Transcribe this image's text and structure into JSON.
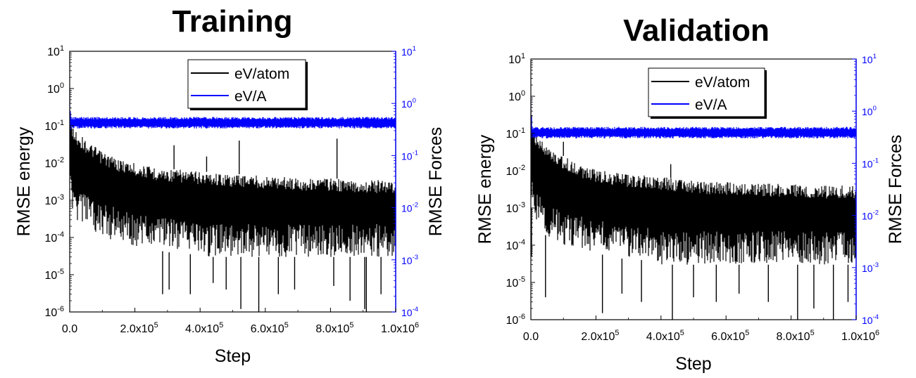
{
  "chart_data": [
    {
      "id": "training",
      "type": "line",
      "title": "Training",
      "xlabel": "Step",
      "ylabel": "RMSE energy",
      "ylabel_right": "RMSE Forces",
      "xlim": [
        0,
        1000000
      ],
      "ylim": [
        1e-06,
        10
      ],
      "ylim_right": [
        0.0001,
        10
      ],
      "yscale": "log",
      "yscale_right": "log",
      "x_tick_labels": [
        {
          "x": 0,
          "mant": "0.0",
          "exp": ""
        },
        {
          "x": 200000,
          "mant": "2.0x10",
          "exp": "5"
        },
        {
          "x": 400000,
          "mant": "4.0x10",
          "exp": "5"
        },
        {
          "x": 600000,
          "mant": "6.0x10",
          "exp": "5"
        },
        {
          "x": 800000,
          "mant": "8.0x10",
          "exp": "5"
        },
        {
          "x": 1000000,
          "mant": "1.0x10",
          "exp": "6"
        }
      ],
      "y_tick_labels": [
        {
          "y": 1e-06,
          "mant": "10",
          "exp": "-6"
        },
        {
          "y": 1e-05,
          "mant": "10",
          "exp": "-5"
        },
        {
          "y": 0.0001,
          "mant": "10",
          "exp": "-4"
        },
        {
          "y": 0.001,
          "mant": "10",
          "exp": "-3"
        },
        {
          "y": 0.01,
          "mant": "10",
          "exp": "-2"
        },
        {
          "y": 0.1,
          "mant": "10",
          "exp": "-1"
        },
        {
          "y": 1,
          "mant": "10",
          "exp": "0"
        },
        {
          "y": 10,
          "mant": "10",
          "exp": "1"
        }
      ],
      "y_right_tick_labels": [
        {
          "y": 0.0001,
          "mant": "10",
          "exp": "-4"
        },
        {
          "y": 0.001,
          "mant": "10",
          "exp": "-3"
        },
        {
          "y": 0.01,
          "mant": "10",
          "exp": "-2"
        },
        {
          "y": 0.1,
          "mant": "10",
          "exp": "-1"
        },
        {
          "y": 1,
          "mant": "10",
          "exp": "0"
        },
        {
          "y": 10,
          "mant": "10",
          "exp": "1"
        }
      ],
      "legend": "top-right",
      "series": [
        {
          "name": "eV/atom",
          "axis": "left",
          "color": "#000000",
          "x": [
            0,
            2000,
            5000,
            10000,
            20000,
            40000,
            60000,
            100000,
            150000,
            200000,
            250000,
            300000,
            350000,
            400000,
            450000,
            500000,
            550000,
            600000,
            650000,
            700000,
            750000,
            800000,
            850000,
            900000,
            950000,
            1000000
          ],
          "upper": [
            1.2,
            0.35,
            0.12,
            0.1,
            0.07,
            0.05,
            0.035,
            0.02,
            0.013,
            0.01,
            0.008,
            0.007,
            0.0065,
            0.006,
            0.0055,
            0.005,
            0.005,
            0.0045,
            0.0045,
            0.004,
            0.004,
            0.004,
            0.0035,
            0.0035,
            0.0035,
            0.0035
          ],
          "lower": [
            0.002,
            0.002,
            0.0008,
            0.0005,
            0.0003,
            0.0002,
            0.00015,
            0.0001,
            8e-05,
            6e-05,
            5e-05,
            4e-05,
            4e-05,
            3e-05,
            3e-05,
            3e-05,
            3e-05,
            3e-05,
            3e-05,
            3e-05,
            3e-05,
            3e-05,
            3e-05,
            3e-05,
            3e-05,
            3e-05
          ],
          "spikes": [
            {
              "x": 285000,
              "y": 3e-06
            },
            {
              "x": 305000,
              "y": 4e-06
            },
            {
              "x": 370000,
              "y": 3e-06
            },
            {
              "x": 440000,
              "y": 6e-06
            },
            {
              "x": 480000,
              "y": 4e-06
            },
            {
              "x": 525000,
              "y": 1.2e-06
            },
            {
              "x": 580000,
              "y": 1e-06
            },
            {
              "x": 640000,
              "y": 3e-06
            },
            {
              "x": 690000,
              "y": 4e-06
            },
            {
              "x": 810000,
              "y": 5e-06
            },
            {
              "x": 860000,
              "y": 2e-06
            },
            {
              "x": 905000,
              "y": 1.2e-06
            },
            {
              "x": 910000,
              "y": 1e-06
            },
            {
              "x": 955000,
              "y": 3e-06
            },
            {
              "x": 320000,
              "y": 0.03
            },
            {
              "x": 420000,
              "y": 0.015
            },
            {
              "x": 520000,
              "y": 0.04
            },
            {
              "x": 820000,
              "y": 0.045
            }
          ]
        },
        {
          "name": "eV/A",
          "axis": "right",
          "color": "#0000ff",
          "x": [
            0,
            2000,
            5000,
            1000000
          ],
          "upper": [
            2.0,
            0.8,
            0.55,
            0.55
          ],
          "lower": [
            0.3,
            0.3,
            0.33,
            0.33
          ]
        }
      ]
    },
    {
      "id": "validation",
      "type": "line",
      "title": "Validation",
      "xlabel": "Step",
      "ylabel": "RMSE energy",
      "ylabel_right": "RMSE Forces",
      "xlim": [
        0,
        1000000
      ],
      "ylim": [
        1e-06,
        10
      ],
      "ylim_right": [
        0.0001,
        10
      ],
      "yscale": "log",
      "yscale_right": "log",
      "x_tick_labels": [
        {
          "x": 0,
          "mant": "0.0",
          "exp": ""
        },
        {
          "x": 200000,
          "mant": "2.0x10",
          "exp": "5"
        },
        {
          "x": 400000,
          "mant": "4.0x10",
          "exp": "5"
        },
        {
          "x": 600000,
          "mant": "6.0x10",
          "exp": "5"
        },
        {
          "x": 800000,
          "mant": "8.0x10",
          "exp": "5"
        },
        {
          "x": 1000000,
          "mant": "1.0x10",
          "exp": "6"
        }
      ],
      "y_tick_labels": [
        {
          "y": 1e-06,
          "mant": "10",
          "exp": "-6"
        },
        {
          "y": 1e-05,
          "mant": "10",
          "exp": "-5"
        },
        {
          "y": 0.0001,
          "mant": "10",
          "exp": "-4"
        },
        {
          "y": 0.001,
          "mant": "10",
          "exp": "-3"
        },
        {
          "y": 0.01,
          "mant": "10",
          "exp": "-2"
        },
        {
          "y": 0.1,
          "mant": "10",
          "exp": "-1"
        },
        {
          "y": 1,
          "mant": "10",
          "exp": "0"
        },
        {
          "y": 10,
          "mant": "10",
          "exp": "1"
        }
      ],
      "y_right_tick_labels": [
        {
          "y": 0.0001,
          "mant": "10",
          "exp": "-4"
        },
        {
          "y": 0.001,
          "mant": "10",
          "exp": "-3"
        },
        {
          "y": 0.01,
          "mant": "10",
          "exp": "-2"
        },
        {
          "y": 0.1,
          "mant": "10",
          "exp": "-1"
        },
        {
          "y": 1,
          "mant": "10",
          "exp": "0"
        },
        {
          "y": 10,
          "mant": "10",
          "exp": "1"
        }
      ],
      "legend": "top-right",
      "series": [
        {
          "name": "eV/atom",
          "axis": "left",
          "color": "#000000",
          "x": [
            0,
            2000,
            5000,
            10000,
            20000,
            40000,
            60000,
            100000,
            150000,
            200000,
            250000,
            300000,
            350000,
            400000,
            450000,
            500000,
            550000,
            600000,
            650000,
            700000,
            750000,
            800000,
            850000,
            900000,
            950000,
            1000000
          ],
          "upper": [
            1.2,
            0.35,
            0.12,
            0.1,
            0.08,
            0.06,
            0.04,
            0.025,
            0.015,
            0.011,
            0.009,
            0.008,
            0.0075,
            0.007,
            0.006,
            0.0055,
            0.005,
            0.005,
            0.0048,
            0.0045,
            0.0045,
            0.0043,
            0.0042,
            0.004,
            0.004,
            0.004
          ],
          "lower": [
            0.003,
            0.001,
            0.0008,
            0.0005,
            0.0003,
            0.0002,
            0.00015,
            0.0001,
            8e-05,
            6e-05,
            5e-05,
            4e-05,
            4e-05,
            3e-05,
            3e-05,
            3e-05,
            3e-05,
            3e-05,
            3e-05,
            3e-05,
            3e-05,
            3e-05,
            3e-05,
            3e-05,
            3e-05,
            3e-05
          ],
          "spikes": [
            {
              "x": 2000,
              "y": 5e-05
            },
            {
              "x": 45000,
              "y": 4e-06
            },
            {
              "x": 220000,
              "y": 1.5e-06
            },
            {
              "x": 280000,
              "y": 5e-06
            },
            {
              "x": 340000,
              "y": 3e-06
            },
            {
              "x": 435000,
              "y": 1e-06
            },
            {
              "x": 500000,
              "y": 4e-06
            },
            {
              "x": 570000,
              "y": 3e-06
            },
            {
              "x": 640000,
              "y": 5e-06
            },
            {
              "x": 730000,
              "y": 3e-06
            },
            {
              "x": 820000,
              "y": 1e-06
            },
            {
              "x": 870000,
              "y": 2e-06
            },
            {
              "x": 930000,
              "y": 1e-06
            },
            {
              "x": 975000,
              "y": 3e-06
            },
            {
              "x": 430000,
              "y": 0.015
            },
            {
              "x": 100000,
              "y": 0.06
            }
          ]
        },
        {
          "name": "eV/A",
          "axis": "right",
          "color": "#0000ff",
          "x": [
            0,
            2000,
            5000,
            1000000
          ],
          "upper": [
            2.0,
            0.8,
            0.5,
            0.5
          ],
          "lower": [
            0.3,
            0.3,
            0.3,
            0.3
          ]
        }
      ]
    }
  ]
}
